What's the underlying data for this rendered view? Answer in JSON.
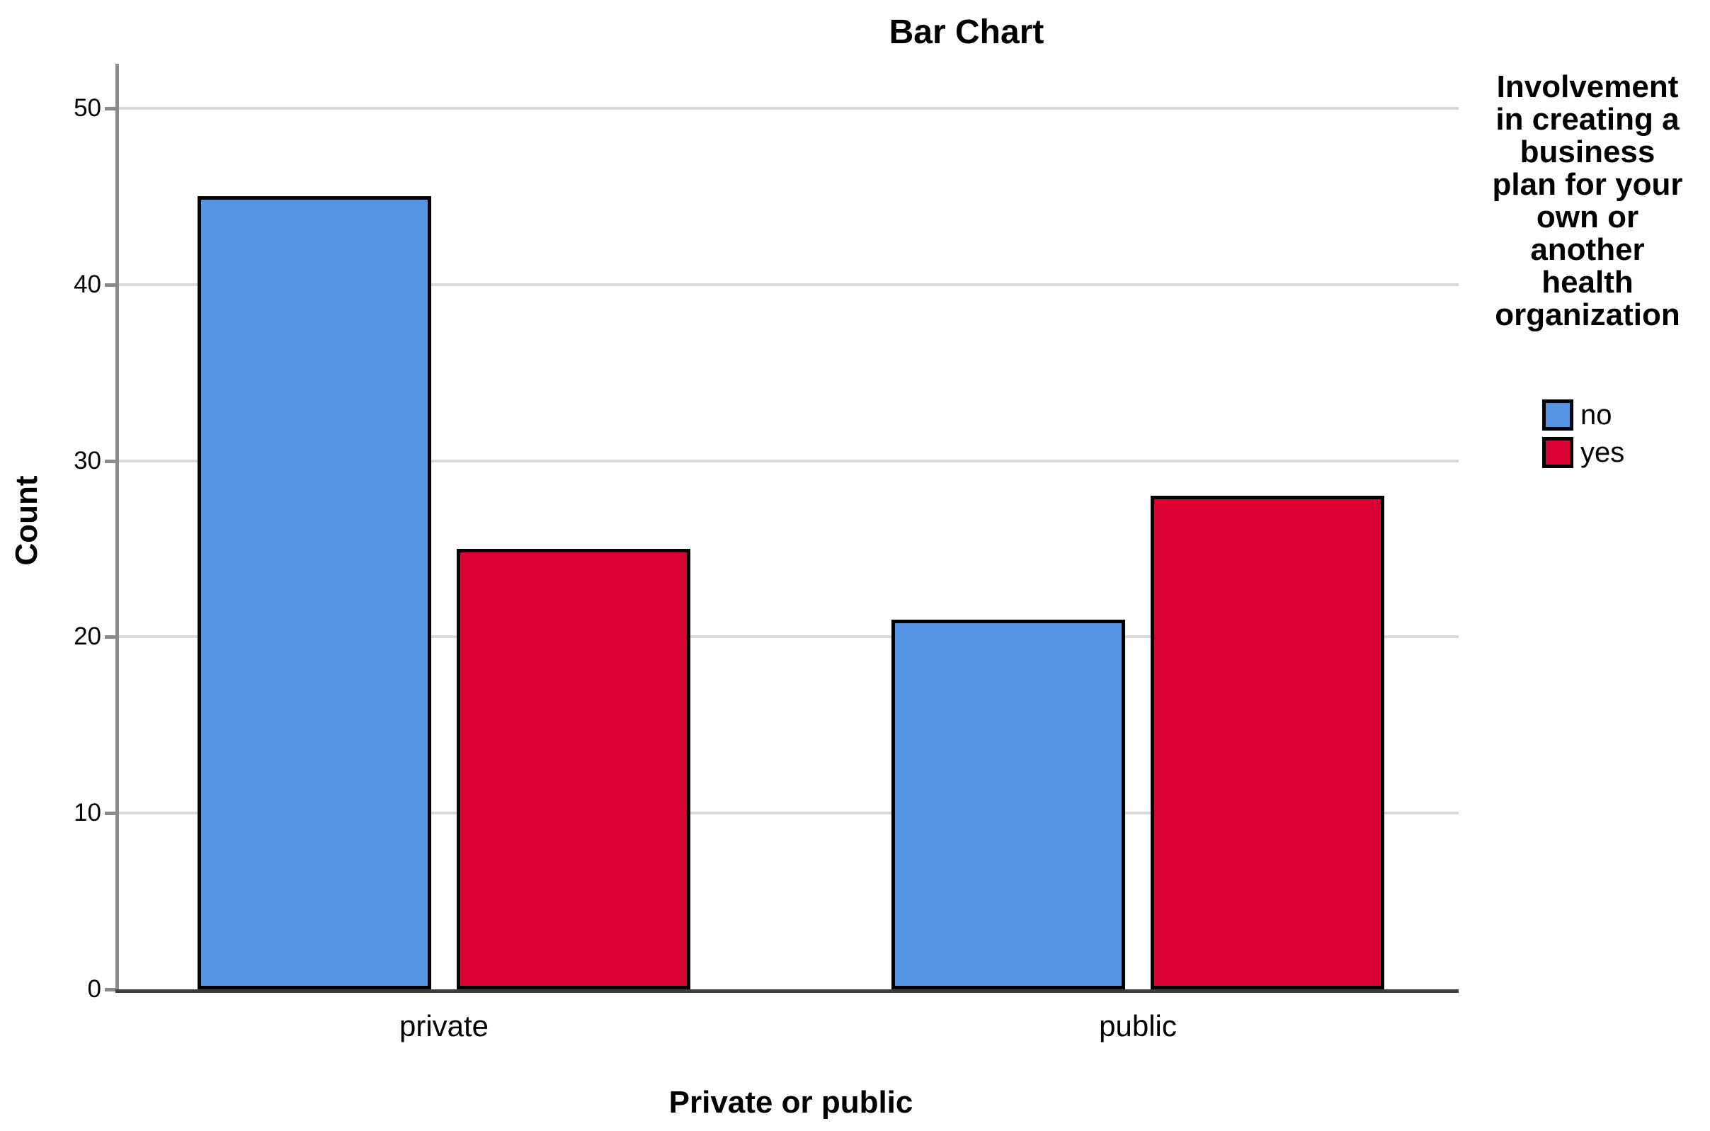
{
  "chart_data": {
    "type": "bar",
    "title": "Bar Chart",
    "xlabel": "Private or public",
    "ylabel": "Count",
    "categories": [
      "private",
      "public"
    ],
    "series": [
      {
        "name": "no",
        "color": "#5794E3",
        "values": [
          45,
          21
        ]
      },
      {
        "name": "yes",
        "color": "#D90033",
        "values": [
          25,
          28
        ]
      }
    ],
    "ylim": [
      0,
      52.5
    ],
    "yticks": [
      0,
      10,
      20,
      30,
      40,
      50
    ],
    "grid": true,
    "legend_position": "right",
    "legend_title": "Involvement in creating a business plan for your own or another health organization",
    "legend_title_lines": [
      "Involvement",
      "in creating a",
      "business",
      "plan for your",
      "own or",
      "another",
      "health",
      "organization"
    ]
  },
  "colors": {
    "bar_border": "#000000",
    "gridline": "#D8D8D8",
    "y_axis_line": "#8A8A8A",
    "x_axis_line": "#3D3D3D",
    "text": "#000000"
  }
}
